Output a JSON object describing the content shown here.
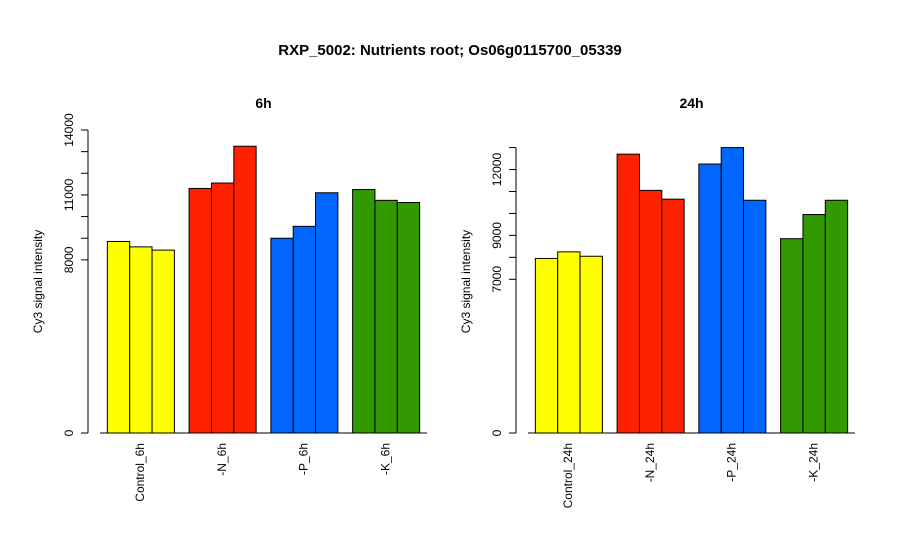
{
  "title": "RXP_5002: Nutrients root; Os06g0115700_05339",
  "chart_data": [
    {
      "type": "bar",
      "title": "6h",
      "ylabel": "Cy3 signal intensity",
      "ylim": [
        0,
        14000
      ],
      "yticks": [
        0,
        8000,
        11000,
        14000
      ],
      "y_minor_ticks": [
        9000,
        10000,
        12000,
        13000
      ],
      "groups": [
        {
          "label": "Control_6h",
          "color": "#ffff00",
          "values": [
            8850,
            8600,
            8450
          ]
        },
        {
          "label": "-N_6h",
          "color": "#ff2200",
          "values": [
            11300,
            11550,
            13250
          ]
        },
        {
          "label": "-P_6h",
          "color": "#0066ff",
          "values": [
            9000,
            9550,
            11100
          ]
        },
        {
          "label": "-K_6h",
          "color": "#339900",
          "values": [
            11250,
            10750,
            10650
          ]
        }
      ]
    },
    {
      "type": "bar",
      "title": "24h",
      "ylabel": "Cy3 signal intensity",
      "ylim": [
        0,
        13800
      ],
      "yticks": [
        0,
        7000,
        9000,
        12000
      ],
      "y_minor_ticks": [
        8000,
        10000,
        11000,
        13000
      ],
      "groups": [
        {
          "label": "Control_24h",
          "color": "#ffff00",
          "values": [
            7950,
            8250,
            8050
          ]
        },
        {
          "label": "-N_24h",
          "color": "#ff2200",
          "values": [
            12700,
            11050,
            10650
          ]
        },
        {
          "label": "-P_24h",
          "color": "#0066ff",
          "values": [
            12250,
            13000,
            10600
          ]
        },
        {
          "label": "-K_24h",
          "color": "#339900",
          "values": [
            8850,
            9950,
            10600
          ]
        }
      ]
    }
  ]
}
